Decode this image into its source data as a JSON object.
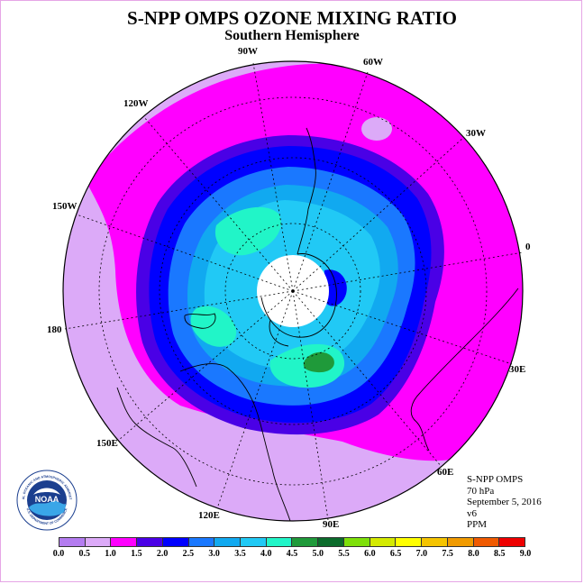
{
  "header": {
    "title": "S-NPP OMPS OZONE MIXING RATIO",
    "subtitle": "Southern Hemisphere"
  },
  "map": {
    "projection": "polar stereographic",
    "hemisphere": "south",
    "longitude_labels": [
      "90W",
      "60W",
      "30W",
      "0",
      "30E",
      "60E",
      "90E",
      "120E",
      "150E",
      "180",
      "150W",
      "120W"
    ],
    "polar_data_gap": true,
    "max_feature": "4.5 PPM patch south of Australia"
  },
  "info": {
    "instrument": "S-NPP OMPS",
    "level": "70 hPa",
    "date": "September 5, 2016",
    "version": "v6",
    "units": "PPM"
  },
  "logo": {
    "text": "NOAA",
    "ring_text": "NATIONAL OCEANIC AND ATMOSPHERIC ADMINISTRATION",
    "ring_text_bottom": "U.S. DEPARTMENT OF COMMERCE"
  },
  "colorbar": {
    "ticks": [
      "0.0",
      "0.5",
      "1.0",
      "1.5",
      "2.0",
      "2.5",
      "3.0",
      "3.5",
      "4.0",
      "4.5",
      "5.0",
      "5.5",
      "6.0",
      "6.5",
      "7.0",
      "7.5",
      "8.0",
      "8.5",
      "9.0"
    ],
    "colors": [
      "#b47cf0",
      "#dcaaf8",
      "#ff00ff",
      "#4a00e6",
      "#0000ff",
      "#1a78ff",
      "#11a9f0",
      "#21c9f5",
      "#21f5c8",
      "#1f9a3a",
      "#0b6b2b",
      "#7ee00a",
      "#d4ea00",
      "#ffff00",
      "#f5c400",
      "#f09a00",
      "#f05a00",
      "#ee0000",
      "#8b4a2a"
    ]
  }
}
